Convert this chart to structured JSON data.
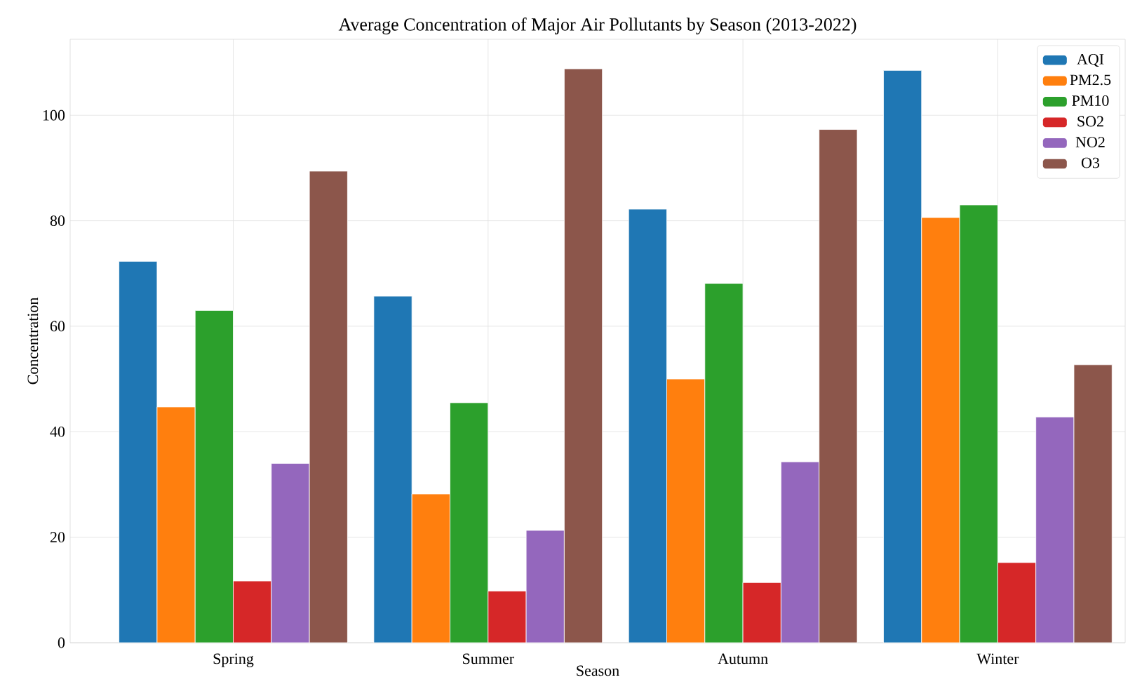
{
  "chart_data": {
    "type": "bar",
    "title": "Average Concentration of Major Air Pollutants by Season (2013-2022)",
    "xlabel": "Season",
    "ylabel": "Concentration",
    "categories": [
      "Spring",
      "Summer",
      "Autumn",
      "Winter"
    ],
    "series": [
      {
        "name": "AQI",
        "color": "#1f77b4",
        "values": [
          72.3,
          65.7,
          82.2,
          108.5
        ]
      },
      {
        "name": "PM2.5",
        "color": "#ff7f0e",
        "values": [
          44.7,
          28.2,
          50.0,
          80.6
        ]
      },
      {
        "name": "PM10",
        "color": "#2ca02c",
        "values": [
          63.0,
          45.5,
          68.1,
          83.0
        ]
      },
      {
        "name": "SO2",
        "color": "#d62728",
        "values": [
          11.7,
          9.8,
          11.4,
          15.2
        ]
      },
      {
        "name": "NO2",
        "color": "#9467bd",
        "values": [
          34.0,
          21.3,
          34.3,
          42.8
        ]
      },
      {
        "name": "O3",
        "color": "#8c564b",
        "values": [
          89.4,
          108.8,
          97.3,
          52.7
        ]
      }
    ],
    "ylim": [
      0,
      114.4
    ],
    "yticks": [
      0,
      20,
      40,
      60,
      80,
      100
    ],
    "grid": true,
    "legend": "top right"
  }
}
